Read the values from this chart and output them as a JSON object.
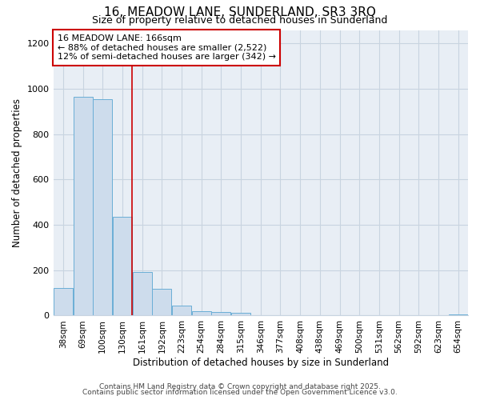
{
  "title1": "16, MEADOW LANE, SUNDERLAND, SR3 3RQ",
  "title2": "Size of property relative to detached houses in Sunderland",
  "xlabel": "Distribution of detached houses by size in Sunderland",
  "ylabel": "Number of detached properties",
  "categories": [
    "38sqm",
    "69sqm",
    "100sqm",
    "130sqm",
    "161sqm",
    "192sqm",
    "223sqm",
    "254sqm",
    "284sqm",
    "315sqm",
    "346sqm",
    "377sqm",
    "408sqm",
    "438sqm",
    "469sqm",
    "500sqm",
    "531sqm",
    "562sqm",
    "592sqm",
    "623sqm",
    "654sqm"
  ],
  "values": [
    120,
    965,
    955,
    435,
    192,
    118,
    45,
    20,
    15,
    12,
    0,
    0,
    0,
    0,
    0,
    0,
    0,
    0,
    0,
    0,
    6
  ],
  "bar_color": "#cddcec",
  "bar_edge_color": "#6aaed6",
  "red_line_index": 4,
  "annotation_text": "16 MEADOW LANE: 166sqm\n← 88% of detached houses are smaller (2,522)\n12% of semi-detached houses are larger (342) →",
  "annotation_box_color": "white",
  "annotation_box_edge_color": "#cc0000",
  "red_line_color": "#cc0000",
  "grid_color": "#c8d4e0",
  "bg_color": "#e8eef5",
  "fig_bg_color": "white",
  "footer1": "Contains HM Land Registry data © Crown copyright and database right 2025.",
  "footer2": "Contains public sector information licensed under the Open Government Licence v3.0.",
  "ylim": [
    0,
    1260
  ],
  "yticks": [
    0,
    200,
    400,
    600,
    800,
    1000,
    1200
  ]
}
